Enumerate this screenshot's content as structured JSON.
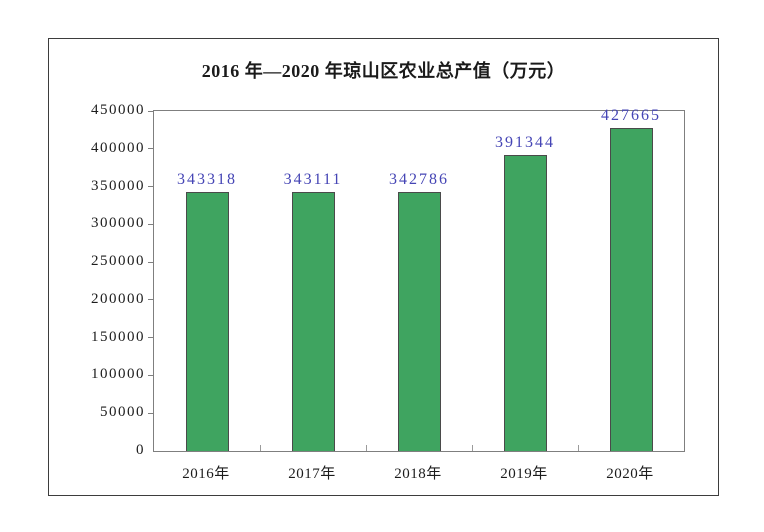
{
  "chart_data": {
    "type": "bar",
    "title": "2016 年—2020 年琼山区农业总产值（万元）",
    "categories": [
      "2016年",
      "2017年",
      "2018年",
      "2019年",
      "2020年"
    ],
    "values": [
      343318,
      343111,
      342786,
      391344,
      427665
    ],
    "value_labels": [
      "343318",
      "343111",
      "342786",
      "391344",
      "427665"
    ],
    "xlabel": "",
    "ylabel": "",
    "ylim": [
      0,
      450000
    ],
    "ytick_step": 50000,
    "ytick_labels": [
      "0",
      "50000",
      "100000",
      "150000",
      "200000",
      "250000",
      "300000",
      "350000",
      "400000",
      "450000"
    ],
    "grid": "off",
    "legend": "none",
    "colors": {
      "bar_fill": "#3fa460",
      "bar_border": "#4a4a4a",
      "value_label": "#4545b5",
      "axis_text": "#1c1c1c",
      "plot_border": "#7f7f7f",
      "frame_border": "#3d3d3d",
      "background": "#ffffff"
    }
  }
}
